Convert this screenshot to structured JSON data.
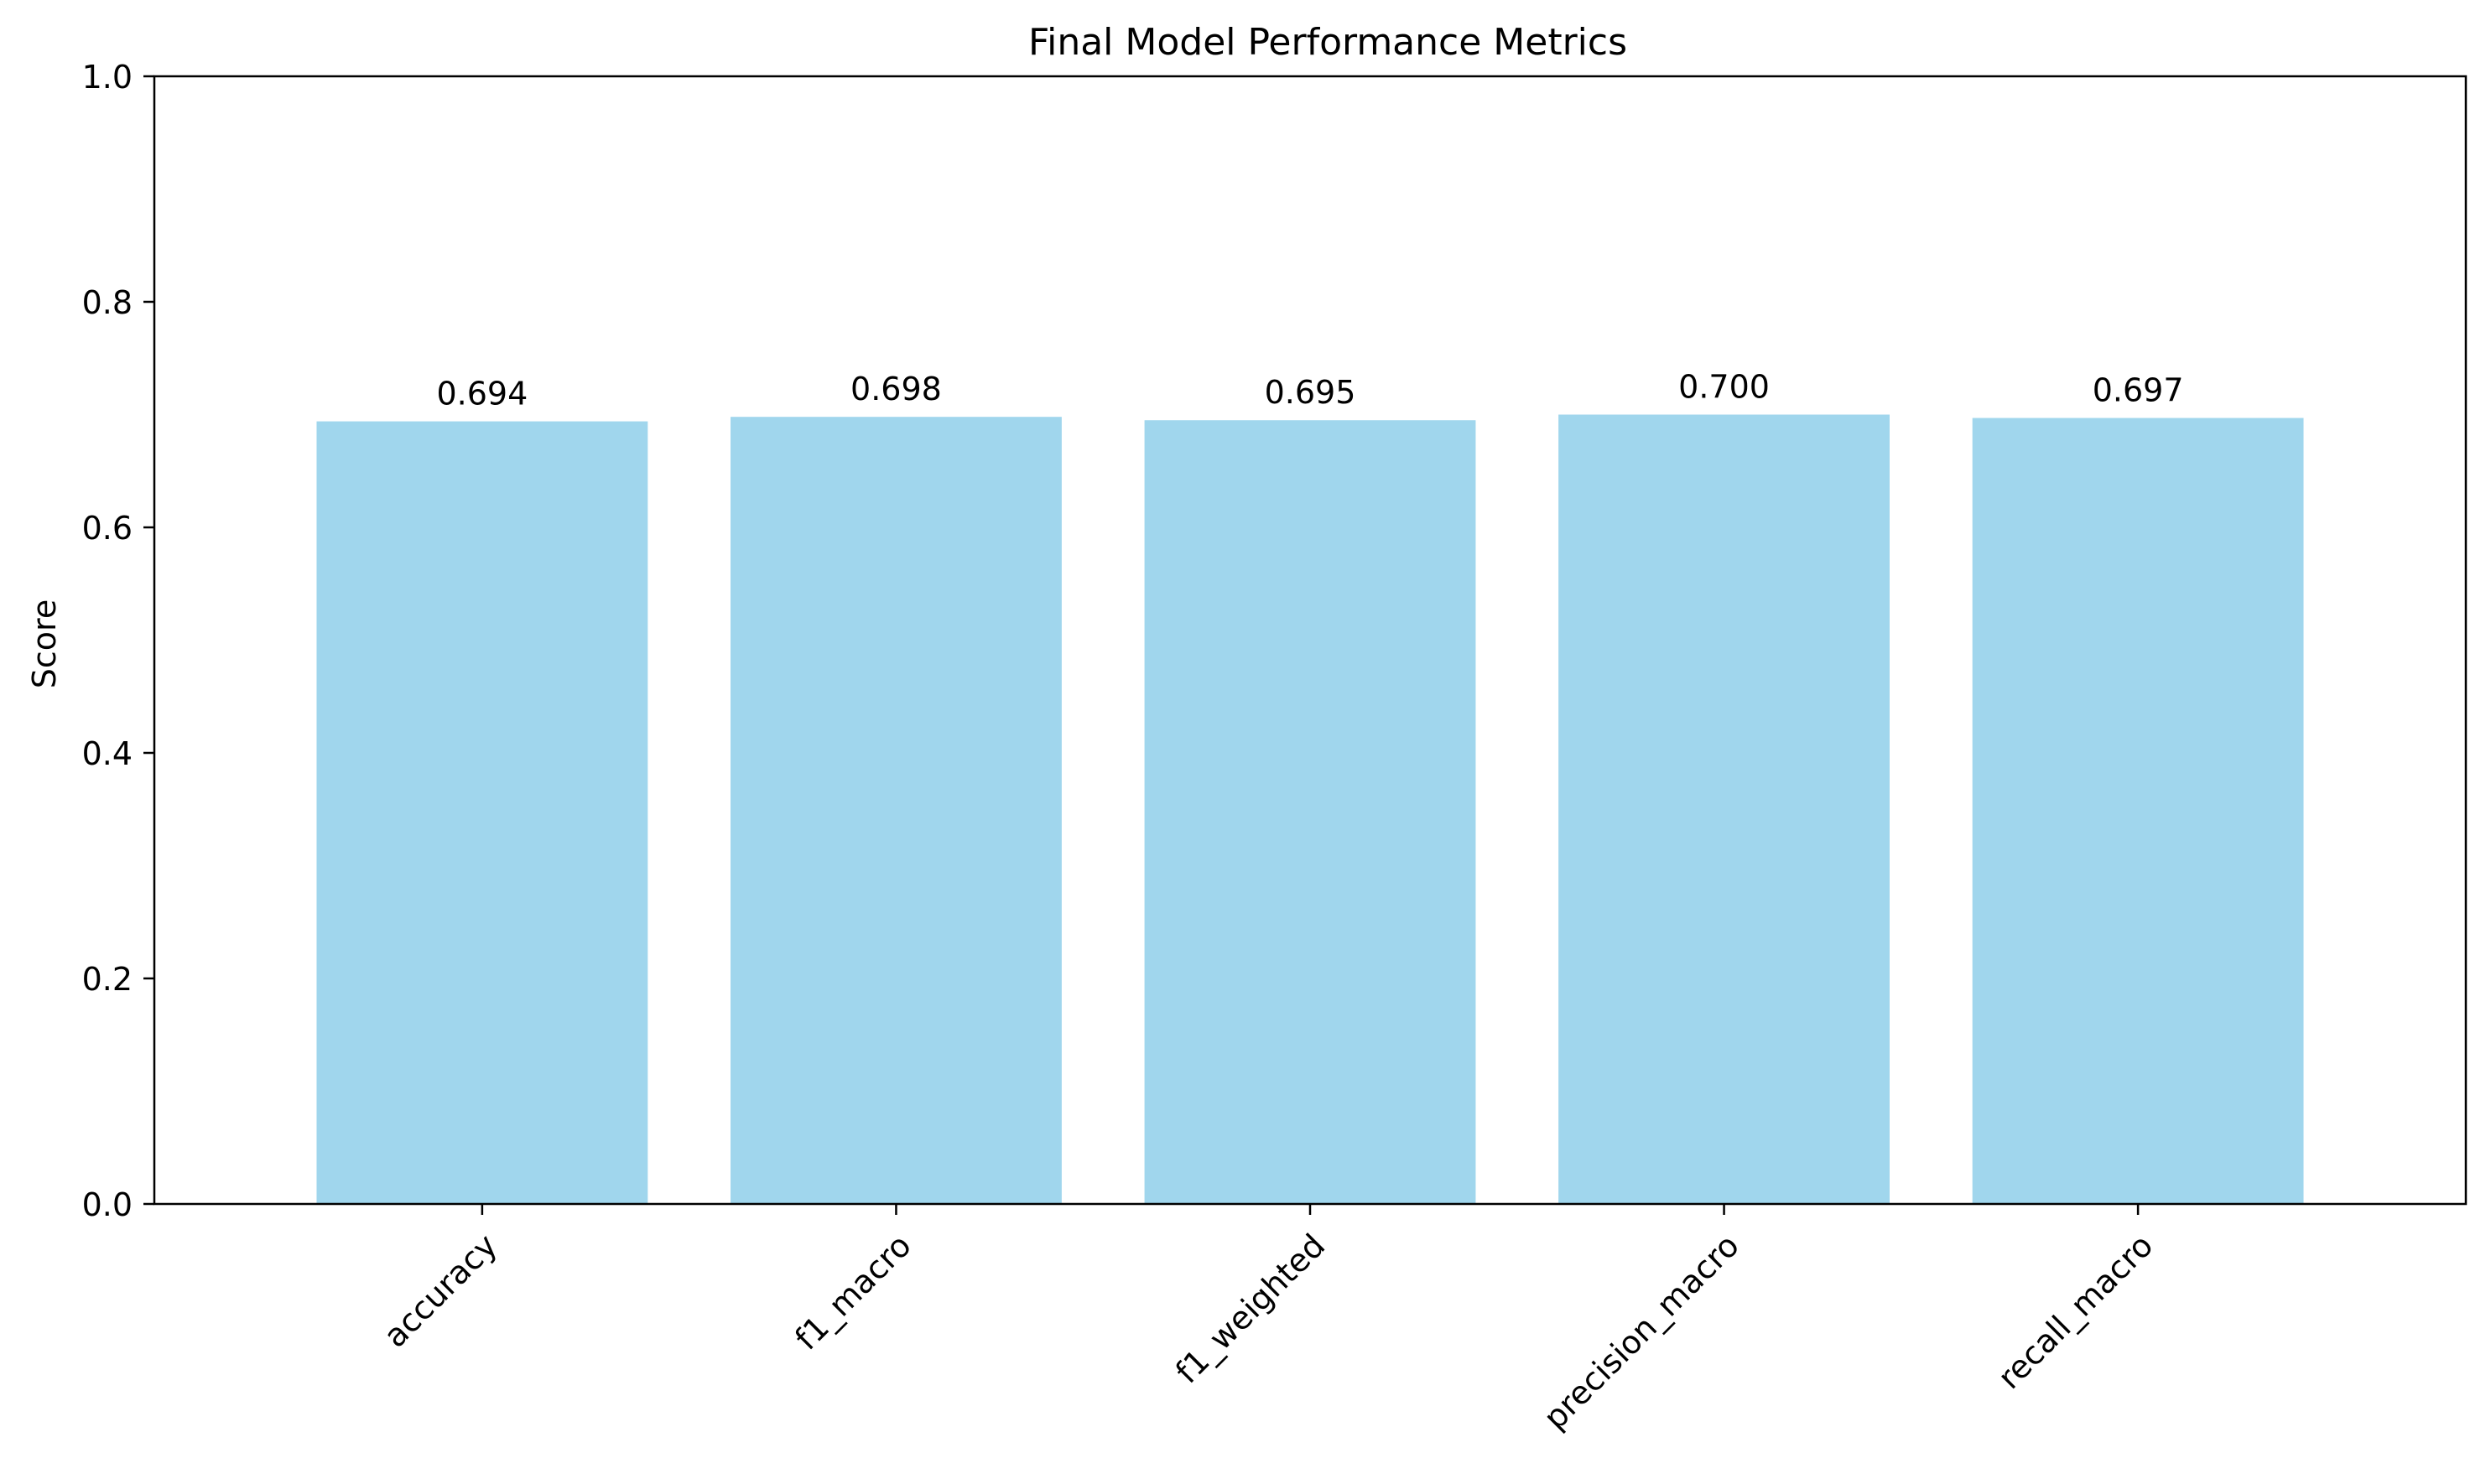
{
  "chart_data": {
    "type": "bar",
    "title": "Final Model Performance Metrics",
    "xlabel": "",
    "ylabel": "Score",
    "ylim": [
      0,
      1.0
    ],
    "yticks": [
      "0.0",
      "0.2",
      "0.4",
      "0.6",
      "0.8",
      "1.0"
    ],
    "categories": [
      "accuracy",
      "f1_macro",
      "f1_weighted",
      "precision_macro",
      "recall_macro"
    ],
    "values": [
      0.694,
      0.698,
      0.695,
      0.7,
      0.697
    ],
    "value_labels": [
      "0.694",
      "0.698",
      "0.695",
      "0.700",
      "0.697"
    ],
    "bar_color": "#a0d6ed",
    "grid": false,
    "legend": "none"
  }
}
